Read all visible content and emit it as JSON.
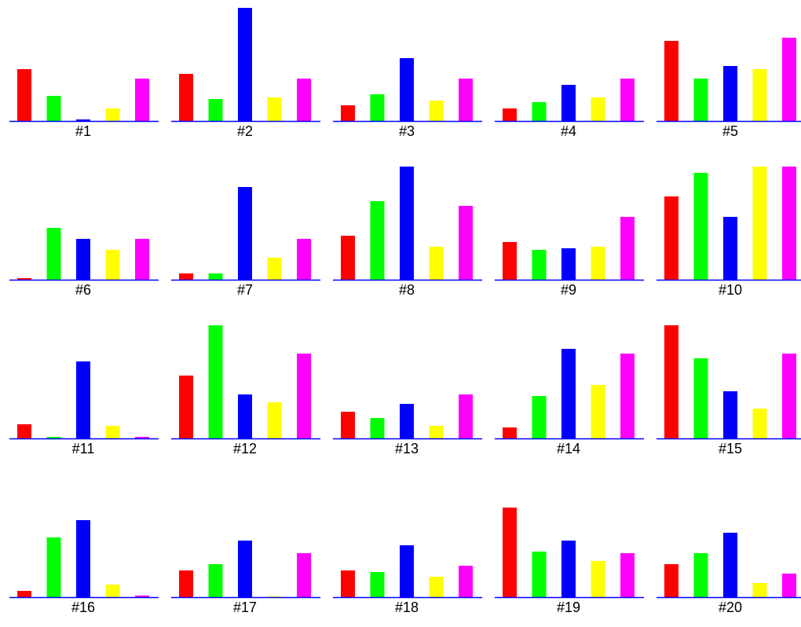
{
  "colors": {
    "red": "#ff0000",
    "green": "#00ff00",
    "blue": "#0000ff",
    "yellow": "#ffff00",
    "magenta": "#ff00ff",
    "baseline": "#0000ff",
    "label": "#000000"
  },
  "chart_data": {
    "type": "bar",
    "grid": false,
    "ylim": [
      0,
      36
    ],
    "series_colors": [
      "#ff0000",
      "#00ff00",
      "#0000ff",
      "#ffff00",
      "#ff00ff"
    ],
    "panels": [
      {
        "label": "#1",
        "values": [
          16.5,
          8,
          0.5,
          4,
          13.5
        ]
      },
      {
        "label": "#2",
        "values": [
          15,
          7,
          36,
          7.5,
          13.5
        ]
      },
      {
        "label": "#3",
        "values": [
          5,
          8.5,
          20,
          6.5,
          13.5
        ]
      },
      {
        "label": "#4",
        "values": [
          4,
          6,
          11.5,
          7.5,
          13.5
        ]
      },
      {
        "label": "#5",
        "values": [
          25.5,
          13.5,
          17.5,
          16.5,
          26.5
        ]
      },
      {
        "label": "#6",
        "values": [
          0.5,
          16.5,
          13,
          9.5,
          13
        ]
      },
      {
        "label": "#7",
        "values": [
          2,
          2,
          29.5,
          7,
          13
        ]
      },
      {
        "label": "#8",
        "values": [
          14,
          25,
          36,
          10.5,
          23.5
        ]
      },
      {
        "label": "#9",
        "values": [
          12,
          9.5,
          10,
          10.5,
          20
        ]
      },
      {
        "label": "#10",
        "values": [
          26.5,
          34,
          20,
          36,
          36
        ]
      },
      {
        "label": "#11",
        "values": [
          4.5,
          0.5,
          24.5,
          4,
          0.5
        ]
      },
      {
        "label": "#12",
        "values": [
          20,
          36,
          14,
          11.5,
          27
        ]
      },
      {
        "label": "#13",
        "values": [
          8.5,
          6.5,
          11,
          4,
          14
        ]
      },
      {
        "label": "#14",
        "values": [
          3.5,
          13.5,
          28.5,
          17,
          27
        ]
      },
      {
        "label": "#15",
        "values": [
          36,
          25.5,
          15,
          9.5,
          27
        ]
      },
      {
        "label": "#16",
        "values": [
          2,
          19,
          24.5,
          4,
          0.5
        ]
      },
      {
        "label": "#17",
        "values": [
          8.5,
          10.5,
          18,
          0.3,
          14
        ]
      },
      {
        "label": "#18",
        "values": [
          8.5,
          8,
          16.5,
          6.5,
          10
        ]
      },
      {
        "label": "#19",
        "values": [
          28.5,
          14.5,
          18,
          11.5,
          14
        ]
      },
      {
        "label": "#20",
        "values": [
          10.5,
          14,
          20.5,
          4.5,
          7.5
        ]
      }
    ]
  }
}
